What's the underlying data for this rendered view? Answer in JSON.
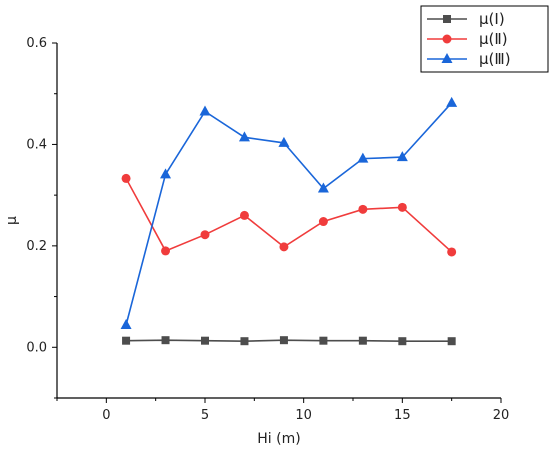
{
  "chart_data": {
    "type": "line",
    "title": "",
    "xlabel": "Hi (m)",
    "ylabel": "μ",
    "xlim": [
      -2.5,
      20
    ],
    "ylim": [
      -0.1,
      0.6
    ],
    "x_ticks": [
      0,
      5,
      10,
      15,
      20
    ],
    "y_ticks": [
      0.0,
      0.2,
      0.4,
      0.6
    ],
    "x_tick_labels": [
      "0",
      "5",
      "10",
      "15",
      "20"
    ],
    "y_tick_labels": [
      "0.0",
      "0.2",
      "0.4",
      "0.6"
    ],
    "legend_position": "top-right",
    "grid": false,
    "x": [
      1,
      3,
      5,
      7,
      9,
      11,
      13,
      15,
      17.5
    ],
    "series": [
      {
        "name": "μ(Ⅰ)",
        "color": "#4d4d4d",
        "marker": "square",
        "values": [
          0.013,
          0.014,
          0.013,
          0.012,
          0.014,
          0.013,
          0.013,
          0.012,
          0.012
        ]
      },
      {
        "name": "μ(Ⅱ)",
        "color": "#f03c3c",
        "marker": "circle",
        "values": [
          0.333,
          0.19,
          0.222,
          0.26,
          0.198,
          0.248,
          0.272,
          0.276,
          0.188
        ]
      },
      {
        "name": "μ(Ⅲ)",
        "color": "#1a66d9",
        "marker": "triangle",
        "values": [
          0.044,
          0.341,
          0.465,
          0.414,
          0.403,
          0.313,
          0.372,
          0.375,
          0.482
        ]
      }
    ]
  }
}
